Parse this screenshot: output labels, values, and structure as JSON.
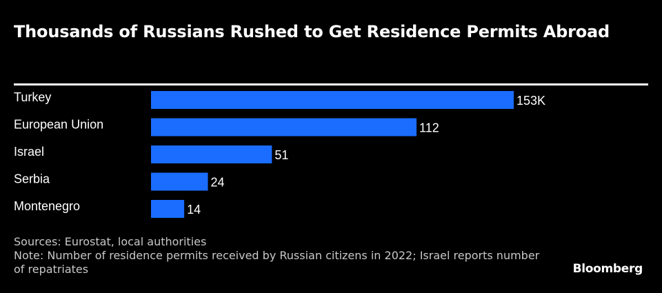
{
  "header": {
    "title": "Thousands of Russians Rushed to Get Residence Permits Abroad"
  },
  "chart_data": {
    "type": "bar",
    "orientation": "horizontal",
    "categories": [
      "Turkey",
      "European Union",
      "Israel",
      "Serbia",
      "Montenegro"
    ],
    "values": [
      153,
      112,
      51,
      24,
      14
    ],
    "value_labels": [
      "153K",
      "112",
      "51",
      "24",
      "14"
    ],
    "unit": "thousands",
    "title": "Thousands of Russians Rushed to Get Residence Permits Abroad",
    "xlabel": "",
    "ylabel": "",
    "xlim": [
      0,
      153
    ],
    "grid": false,
    "bar_color": "#1a6dff"
  },
  "footer": {
    "sources": "Sources: Eurostat, local authorities",
    "note": "Note: Number of residence permits received by Russian citizens in 2022; Israel reports number of repatriates",
    "brand": "Bloomberg"
  },
  "colors": {
    "background": "#000000",
    "text": "#ffffff",
    "footnote": "#c8c8c8"
  }
}
